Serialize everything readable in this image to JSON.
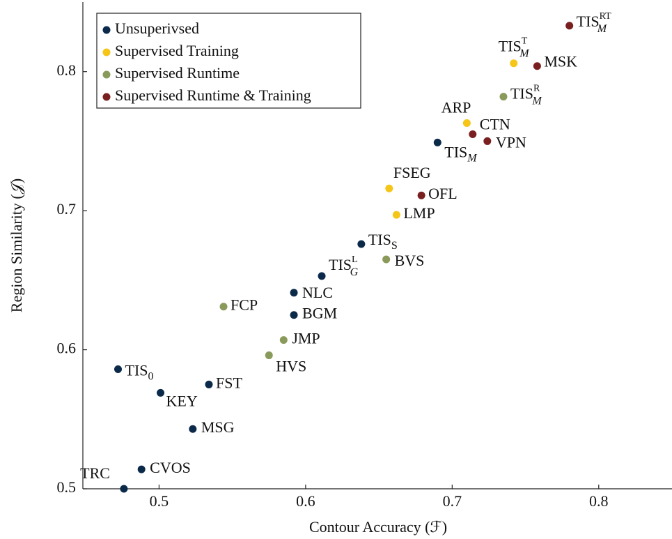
{
  "chart_data": {
    "type": "scatter",
    "xlabel": "Contour Accuracy (ℱ)",
    "ylabel": "Region Similarity (𝒥)",
    "xlim": [
      0.448,
      0.85
    ],
    "ylim": [
      0.5,
      0.85
    ],
    "xticks": [
      0.5,
      0.6,
      0.7,
      0.8
    ],
    "yticks": [
      0.5,
      0.6,
      0.7,
      0.8
    ],
    "legend": "top-left",
    "series": [
      {
        "name": "Unsuperivsed",
        "color": "#0b2a4a",
        "x": [
          0.476,
          0.488,
          0.523,
          0.501,
          0.472,
          0.534,
          0.592,
          0.592,
          0.611,
          0.638,
          0.69
        ],
        "values": [
          0.5,
          0.514,
          0.543,
          0.569,
          0.586,
          0.575,
          0.625,
          0.641,
          0.653,
          0.676,
          0.749
        ],
        "labels": [
          {
            "base": "TRC"
          },
          {
            "base": "CVOS"
          },
          {
            "base": "MSG"
          },
          {
            "base": "KEY"
          },
          {
            "base": "TIS",
            "sub": "0"
          },
          {
            "base": "FST"
          },
          {
            "base": "BGM"
          },
          {
            "base": "NLC"
          },
          {
            "base": "TIS",
            "sub": "G",
            "sup": "L"
          },
          {
            "base": "TIS",
            "sub": "S"
          },
          {
            "base": "TIS",
            "sub": "M"
          }
        ]
      },
      {
        "name": "Supervised Training",
        "color": "#f5c518",
        "x": [
          0.662,
          0.657,
          0.71,
          0.742
        ],
        "values": [
          0.697,
          0.716,
          0.763,
          0.806
        ],
        "labels": [
          {
            "base": "LMP"
          },
          {
            "base": "FSEG"
          },
          {
            "base": "ARP"
          },
          {
            "base": "TIS",
            "sub": "M",
            "sup": "T"
          }
        ]
      },
      {
        "name": "Supervised Runtime",
        "color": "#8a9a5b",
        "x": [
          0.544,
          0.585,
          0.575,
          0.655,
          0.735
        ],
        "values": [
          0.631,
          0.607,
          0.596,
          0.665,
          0.782
        ],
        "labels": [
          {
            "base": "FCP"
          },
          {
            "base": "JMP"
          },
          {
            "base": "HVS"
          },
          {
            "base": "BVS"
          },
          {
            "base": "TIS",
            "sub": "M",
            "sup": "R"
          }
        ]
      },
      {
        "name": "Supervised Runtime & Training",
        "color": "#7a1f1f",
        "x": [
          0.679,
          0.714,
          0.724,
          0.758,
          0.78
        ],
        "values": [
          0.711,
          0.755,
          0.75,
          0.804,
          0.833
        ],
        "labels": [
          {
            "base": "OFL"
          },
          {
            "base": "CTN"
          },
          {
            "base": "VPN"
          },
          {
            "base": "MSK"
          },
          {
            "base": "TIS",
            "sub": "M",
            "sup": "RT"
          }
        ]
      }
    ]
  }
}
